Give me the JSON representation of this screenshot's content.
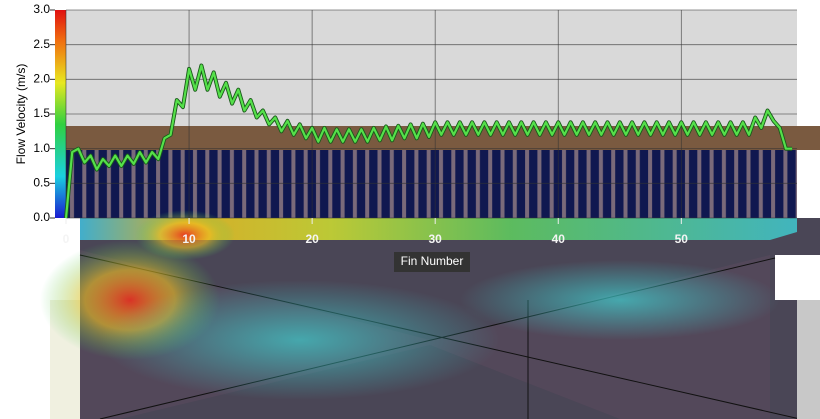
{
  "chart_data": {
    "type": "line",
    "y_label": "Flow Velocity (m/s)",
    "x_label": "Fin Number",
    "x": [
      0,
      0.5,
      1,
      1.5,
      2,
      2.5,
      3,
      3.5,
      4,
      4.5,
      5,
      5.5,
      6,
      6.5,
      7,
      7.5,
      8,
      8.5,
      9,
      9.5,
      10,
      10.5,
      11,
      11.5,
      12,
      12.5,
      13,
      13.5,
      14,
      14.5,
      15,
      15.5,
      16,
      16.5,
      17,
      17.5,
      18,
      18.5,
      19,
      19.5,
      20,
      20.5,
      21,
      21.5,
      22,
      22.5,
      23,
      23.5,
      24,
      24.5,
      25,
      25.5,
      26,
      26.5,
      27,
      27.5,
      28,
      28.5,
      29,
      29.5,
      30,
      30.5,
      31,
      31.5,
      32,
      32.5,
      33,
      33.5,
      34,
      34.5,
      35,
      35.5,
      36,
      36.5,
      37,
      37.5,
      38,
      38.5,
      39,
      39.5,
      40,
      40.5,
      41,
      41.5,
      42,
      42.5,
      43,
      43.5,
      44,
      44.5,
      45,
      45.5,
      46,
      46.5,
      47,
      47.5,
      48,
      48.5,
      49,
      49.5,
      50,
      50.5,
      51,
      51.5,
      52,
      52.5,
      53,
      53.5,
      54,
      54.5,
      55,
      55.5,
      56,
      56.5,
      57,
      57.5,
      58,
      58.5,
      59
    ],
    "values": [
      0,
      0.95,
      1.0,
      0.8,
      0.9,
      0.7,
      0.85,
      0.75,
      0.9,
      0.75,
      0.9,
      0.78,
      0.95,
      0.8,
      0.95,
      0.85,
      1.15,
      1.2,
      1.7,
      1.6,
      2.15,
      1.85,
      2.2,
      1.85,
      2.1,
      1.75,
      1.95,
      1.65,
      1.85,
      1.55,
      1.7,
      1.45,
      1.55,
      1.35,
      1.45,
      1.25,
      1.4,
      1.2,
      1.35,
      1.15,
      1.3,
      1.1,
      1.3,
      1.1,
      1.28,
      1.1,
      1.28,
      1.1,
      1.28,
      1.1,
      1.3,
      1.12,
      1.32,
      1.12,
      1.33,
      1.15,
      1.35,
      1.15,
      1.36,
      1.17,
      1.38,
      1.2,
      1.38,
      1.2,
      1.38,
      1.2,
      1.38,
      1.2,
      1.38,
      1.2,
      1.38,
      1.2,
      1.38,
      1.2,
      1.38,
      1.2,
      1.38,
      1.2,
      1.38,
      1.2,
      1.38,
      1.2,
      1.38,
      1.2,
      1.38,
      1.2,
      1.38,
      1.2,
      1.38,
      1.2,
      1.38,
      1.2,
      1.38,
      1.2,
      1.38,
      1.2,
      1.38,
      1.2,
      1.38,
      1.2,
      1.38,
      1.2,
      1.38,
      1.2,
      1.38,
      1.2,
      1.38,
      1.2,
      1.38,
      1.2,
      1.38,
      1.2,
      1.45,
      1.3,
      1.55,
      1.4,
      1.3,
      1.0,
      1.0
    ],
    "color": "#55e04a",
    "xlim": [
      0,
      59.4
    ],
    "ylim": [
      0,
      3
    ],
    "xticks": [
      0,
      10,
      20,
      30,
      40,
      50
    ],
    "yticks": [
      {
        "value": 0,
        "label": "0.0"
      },
      {
        "value": 0.5,
        "label": "0.5"
      },
      {
        "value": 1,
        "label": "1.0"
      },
      {
        "value": 1.5,
        "label": "1.5"
      },
      {
        "value": 2,
        "label": "2.0"
      },
      {
        "value": 2.5,
        "label": "2.5"
      },
      {
        "value": 3,
        "label": "3.0"
      }
    ],
    "grid": true
  }
}
